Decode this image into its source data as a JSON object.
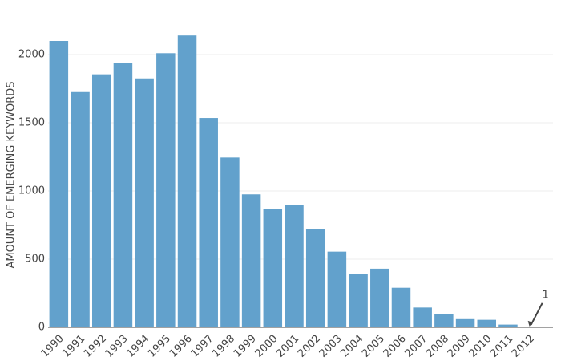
{
  "chart_data": {
    "type": "bar",
    "y_label": "AMOUNT OF EMERGING KEYWORDS",
    "categories": [
      "1990",
      "1991",
      "1992",
      "1993",
      "1994",
      "1995",
      "1996",
      "1997",
      "1998",
      "1999",
      "2000",
      "2001",
      "2002",
      "2003",
      "2004",
      "2005",
      "2006",
      "2007",
      "2008",
      "2009",
      "2010",
      "2011",
      "2012"
    ],
    "values": [
      2100,
      1725,
      1855,
      1940,
      1825,
      2010,
      2140,
      1535,
      1245,
      975,
      865,
      895,
      720,
      555,
      390,
      430,
      290,
      145,
      95,
      60,
      55,
      20,
      1
    ],
    "annotation": "1",
    "color": "#62a1cc",
    "ylim": [
      0,
      2200
    ],
    "yticks": [
      0,
      500,
      1000,
      1500,
      2000
    ],
    "grid": true
  }
}
